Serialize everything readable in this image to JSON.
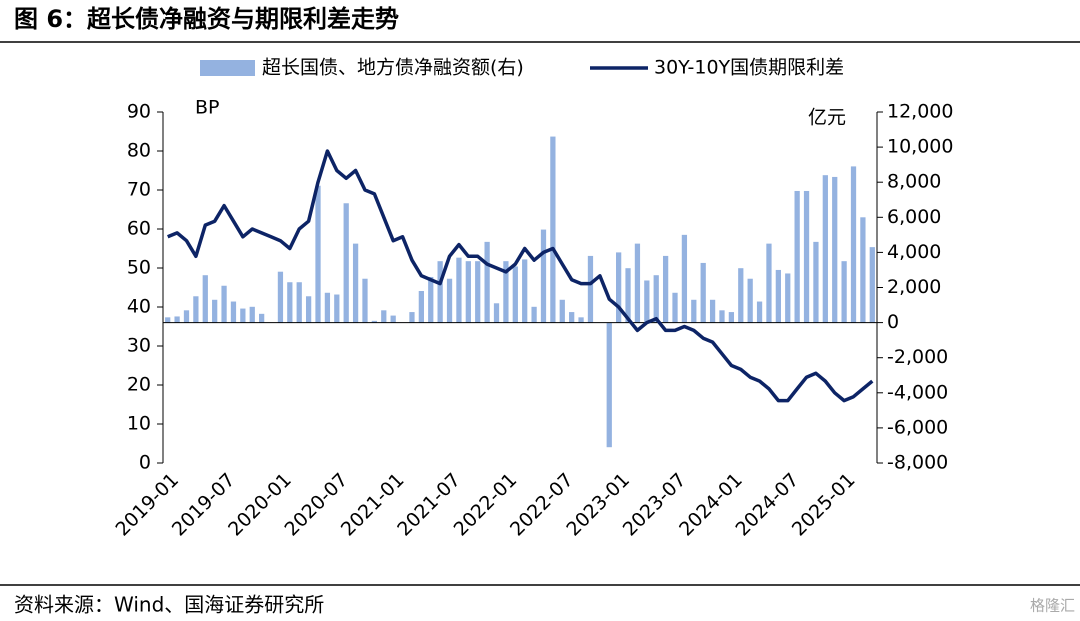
{
  "chart_data": {
    "type": "bar_line",
    "title": "图 6：超长债净融资与期限利差走势",
    "source": "资料来源：Wind、国海证券研究所",
    "watermark": "格隆汇",
    "y_unit": "BP",
    "y2_unit": "亿元",
    "categories": [
      "2019-01",
      null,
      null,
      null,
      null,
      null,
      "2019-07",
      null,
      null,
      null,
      null,
      null,
      "2020-01",
      null,
      null,
      null,
      null,
      null,
      "2020-07",
      null,
      null,
      null,
      null,
      null,
      "2021-01",
      null,
      null,
      null,
      null,
      null,
      "2021-07",
      null,
      null,
      null,
      null,
      null,
      "2022-01",
      null,
      null,
      null,
      null,
      null,
      "2022-07",
      null,
      null,
      null,
      null,
      null,
      "2023-01",
      null,
      null,
      null,
      null,
      null,
      "2023-07",
      null,
      null,
      null,
      null,
      null,
      "2024-01",
      null,
      null,
      null,
      null,
      null,
      "2024-07",
      null,
      null,
      null,
      null,
      null,
      "2025-01",
      null,
      null,
      null
    ],
    "series": [
      {
        "name": "超长国债、地方债净融资额(右)",
        "color": "#94b2e0",
        "kind": "bar",
        "axis": "y2",
        "values": [
          300,
          350,
          700,
          1500,
          2700,
          1300,
          2100,
          1200,
          800,
          900,
          500,
          0,
          2900,
          2300,
          2300,
          1500,
          7800,
          1700,
          1600,
          6800,
          4500,
          2500,
          100,
          700,
          400,
          0,
          600,
          1800,
          2600,
          3500,
          2500,
          3700,
          3500,
          3500,
          4600,
          1100,
          3500,
          3200,
          3600,
          900,
          5300,
          10600,
          1300,
          600,
          300,
          3800,
          0,
          -7100,
          4000,
          3100,
          4500,
          2400,
          2700,
          3800,
          1700,
          5000,
          1300,
          3400,
          1300,
          700,
          600,
          3100,
          2500,
          1200,
          4500,
          3000,
          2800,
          7500,
          7500,
          4600,
          8400,
          8300,
          3500,
          8900,
          6000,
          4300
        ]
      },
      {
        "name": "30Y-10Y国债期限利差",
        "color": "#0d2466",
        "kind": "line",
        "values": [
          58,
          59,
          57,
          53,
          61,
          62,
          66,
          62,
          58,
          60,
          59,
          58,
          57,
          55,
          60,
          62,
          72,
          80,
          75,
          73,
          75,
          70,
          69,
          63,
          57,
          58,
          52,
          48,
          47,
          46,
          53,
          56,
          53,
          53,
          51,
          50,
          49,
          51,
          55,
          52,
          54,
          55,
          51,
          47,
          46,
          46,
          48,
          42,
          40,
          37,
          34,
          36,
          37,
          34,
          34,
          35,
          34,
          32,
          31,
          28,
          25,
          24,
          22,
          21,
          19,
          16,
          16,
          19,
          22,
          23,
          21,
          18,
          16,
          17,
          19,
          21
        ]
      }
    ],
    "ylim": [
      0,
      90
    ],
    "yticks": [
      0,
      10,
      20,
      30,
      40,
      50,
      60,
      70,
      80,
      90
    ],
    "y2lim": [
      -8000,
      12000
    ],
    "y2ticks": [
      {
        "value": -8000,
        "label": "-8,000"
      },
      {
        "value": -6000,
        "label": "-6,000"
      },
      {
        "value": -4000,
        "label": "-4,000"
      },
      {
        "value": -2000,
        "label": "-2,000"
      },
      0,
      {
        "value": 2000,
        "label": "2,000"
      },
      {
        "value": 4000,
        "label": "4,000"
      },
      {
        "value": 6000,
        "label": "6,000"
      },
      {
        "value": 8000,
        "label": "8,000"
      },
      {
        "value": 10000,
        "label": "10,000"
      },
      {
        "value": 12000,
        "label": "12,000"
      }
    ]
  }
}
